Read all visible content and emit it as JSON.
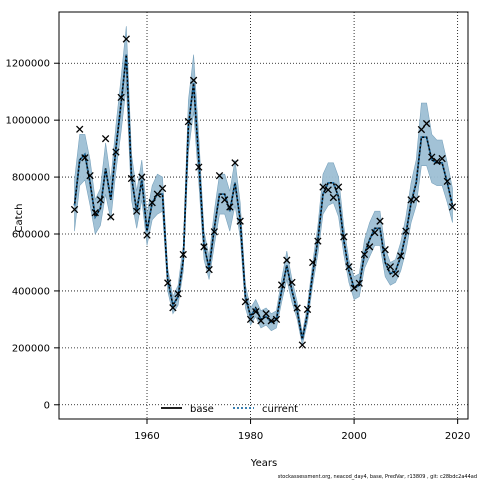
{
  "chart_data": {
    "type": "line",
    "title": "",
    "xlabel": "Years",
    "ylabel": "Catch",
    "xlim": [
      1943,
      2022
    ],
    "ylim": [
      -50000,
      1380000
    ],
    "x_ticks": [
      1960,
      1980,
      2000,
      2020
    ],
    "y_ticks": [
      0,
      200000,
      400000,
      600000,
      800000,
      1000000,
      1200000
    ],
    "grid": true,
    "legend": "bottom-left",
    "footnote": "stockassessment.org, neacod_day4, base, PredVar, r13809 , git: c28bdc2a44ad",
    "colors": {
      "band": "#9dbfd4",
      "band_edge": "#7aa3bd",
      "base": "#000000",
      "current": "#1f6fa6",
      "obs": "#000000"
    },
    "series": [
      {
        "name": "base",
        "style": "solid",
        "x": [
          1946,
          1947,
          1948,
          1949,
          1950,
          1951,
          1952,
          1953,
          1954,
          1955,
          1956,
          1957,
          1958,
          1959,
          1960,
          1961,
          1962,
          1963,
          1964,
          1965,
          1966,
          1967,
          1968,
          1969,
          1970,
          1971,
          1972,
          1973,
          1974,
          1975,
          1976,
          1977,
          1978,
          1979,
          1980,
          1981,
          1982,
          1983,
          1984,
          1985,
          1986,
          1987,
          1988,
          1989,
          1990,
          1991,
          1992,
          1993,
          1994,
          1995,
          1996,
          1997,
          1998,
          1999,
          2000,
          2001,
          2002,
          2003,
          2004,
          2005,
          2006,
          2007,
          2008,
          2009,
          2010,
          2011,
          2012,
          2013,
          2014,
          2015,
          2016,
          2017,
          2018,
          2019
        ],
        "values": [
          700000,
          860000,
          880000,
          780000,
          660000,
          690000,
          830000,
          720000,
          900000,
          1060000,
          1230000,
          800000,
          680000,
          790000,
          610000,
          710000,
          740000,
          740000,
          440000,
          350000,
          380000,
          510000,
          980000,
          1130000,
          860000,
          560000,
          480000,
          620000,
          740000,
          740000,
          680000,
          780000,
          650000,
          380000,
          310000,
          340000,
          300000,
          310000,
          290000,
          300000,
          400000,
          490000,
          400000,
          330000,
          230000,
          320000,
          460000,
          580000,
          740000,
          780000,
          780000,
          730000,
          580000,
          470000,
          410000,
          420000,
          530000,
          580000,
          620000,
          620000,
          500000,
          460000,
          470000,
          520000,
          600000,
          710000,
          780000,
          940000,
          940000,
          860000,
          850000,
          850000,
          780000,
          700000
        ]
      },
      {
        "name": "current",
        "style": "dotted",
        "x": [
          1946,
          1947,
          1948,
          1949,
          1950,
          1951,
          1952,
          1953,
          1954,
          1955,
          1956,
          1957,
          1958,
          1959,
          1960,
          1961,
          1962,
          1963,
          1964,
          1965,
          1966,
          1967,
          1968,
          1969,
          1970,
          1971,
          1972,
          1973,
          1974,
          1975,
          1976,
          1977,
          1978,
          1979,
          1980,
          1981,
          1982,
          1983,
          1984,
          1985,
          1986,
          1987,
          1988,
          1989,
          1990,
          1991,
          1992,
          1993,
          1994,
          1995,
          1996,
          1997,
          1998,
          1999,
          2000,
          2001,
          2002,
          2003,
          2004,
          2005,
          2006,
          2007,
          2008,
          2009,
          2010,
          2011,
          2012,
          2013,
          2014,
          2015,
          2016,
          2017,
          2018,
          2019
        ],
        "values": [
          700000,
          860000,
          880000,
          780000,
          660000,
          690000,
          830000,
          720000,
          900000,
          1060000,
          1230000,
          800000,
          680000,
          790000,
          610000,
          710000,
          740000,
          740000,
          440000,
          350000,
          380000,
          510000,
          980000,
          1130000,
          860000,
          560000,
          480000,
          620000,
          740000,
          740000,
          680000,
          780000,
          650000,
          380000,
          310000,
          340000,
          300000,
          310000,
          290000,
          300000,
          400000,
          490000,
          400000,
          330000,
          230000,
          320000,
          460000,
          580000,
          740000,
          780000,
          780000,
          730000,
          580000,
          470000,
          410000,
          420000,
          530000,
          580000,
          620000,
          620000,
          500000,
          460000,
          470000,
          520000,
          600000,
          710000,
          780000,
          940000,
          940000,
          860000,
          850000,
          850000,
          780000,
          700000
        ],
        "lower": [
          610000,
          770000,
          790000,
          700000,
          600000,
          630000,
          740000,
          650000,
          820000,
          960000,
          1120000,
          720000,
          620000,
          720000,
          560000,
          650000,
          670000,
          680000,
          400000,
          320000,
          350000,
          470000,
          890000,
          1030000,
          780000,
          510000,
          440000,
          560000,
          670000,
          670000,
          610000,
          700000,
          590000,
          340000,
          280000,
          310000,
          270000,
          280000,
          260000,
          270000,
          360000,
          440000,
          360000,
          300000,
          210000,
          290000,
          420000,
          530000,
          670000,
          700000,
          710000,
          660000,
          530000,
          430000,
          370000,
          380000,
          480000,
          520000,
          560000,
          560000,
          450000,
          420000,
          430000,
          470000,
          540000,
          640000,
          700000,
          840000,
          840000,
          780000,
          770000,
          770000,
          710000,
          640000
        ],
        "upper": [
          790000,
          950000,
          950000,
          860000,
          720000,
          760000,
          920000,
          790000,
          980000,
          1150000,
          1330000,
          880000,
          750000,
          860000,
          670000,
          770000,
          810000,
          800000,
          480000,
          380000,
          420000,
          560000,
          1070000,
          1230000,
          940000,
          610000,
          520000,
          680000,
          810000,
          810000,
          750000,
          860000,
          710000,
          420000,
          340000,
          370000,
          330000,
          340000,
          320000,
          330000,
          440000,
          540000,
          440000,
          360000,
          250000,
          350000,
          500000,
          630000,
          810000,
          850000,
          850000,
          800000,
          630000,
          510000,
          450000,
          460000,
          580000,
          640000,
          680000,
          680000,
          550000,
          500000,
          510000,
          570000,
          660000,
          780000,
          860000,
          1060000,
          1060000,
          950000,
          930000,
          930000,
          850000,
          760000
        ]
      }
    ],
    "observations": {
      "name": "observed catch",
      "x": [
        1946,
        1947,
        1948,
        1949,
        1950,
        1951,
        1952,
        1953,
        1954,
        1955,
        1956,
        1957,
        1958,
        1959,
        1960,
        1961,
        1962,
        1963,
        1964,
        1965,
        1966,
        1967,
        1968,
        1969,
        1970,
        1971,
        1972,
        1973,
        1974,
        1975,
        1976,
        1977,
        1978,
        1979,
        1980,
        1981,
        1982,
        1983,
        1984,
        1985,
        1986,
        1987,
        1988,
        1989,
        1990,
        1991,
        1992,
        1993,
        1994,
        1995,
        1996,
        1997,
        1998,
        1999,
        2000,
        2001,
        2002,
        2003,
        2004,
        2005,
        2006,
        2007,
        2008,
        2009,
        2010,
        2011,
        2012,
        2013,
        2014,
        2015,
        2016,
        2017,
        2018,
        2019
      ],
      "values": [
        686000,
        968000,
        868000,
        805000,
        675000,
        720000,
        935000,
        660000,
        888000,
        1080000,
        1285000,
        795000,
        680000,
        800000,
        596000,
        710000,
        740000,
        760000,
        428000,
        341000,
        390000,
        528000,
        995000,
        1140000,
        835000,
        555000,
        475000,
        608000,
        805000,
        720000,
        695000,
        850000,
        645000,
        362000,
        300000,
        327000,
        295000,
        320000,
        295000,
        300000,
        421000,
        508000,
        430000,
        340000,
        210000,
        335000,
        500000,
        575000,
        765000,
        755000,
        728000,
        765000,
        590000,
        485000,
        410000,
        427000,
        528000,
        555000,
        605000,
        645000,
        545000,
        485000,
        460000,
        523000,
        610000,
        720000,
        723000,
        967000,
        988000,
        870000,
        855000,
        865000,
        785000,
        695000
      ]
    }
  }
}
